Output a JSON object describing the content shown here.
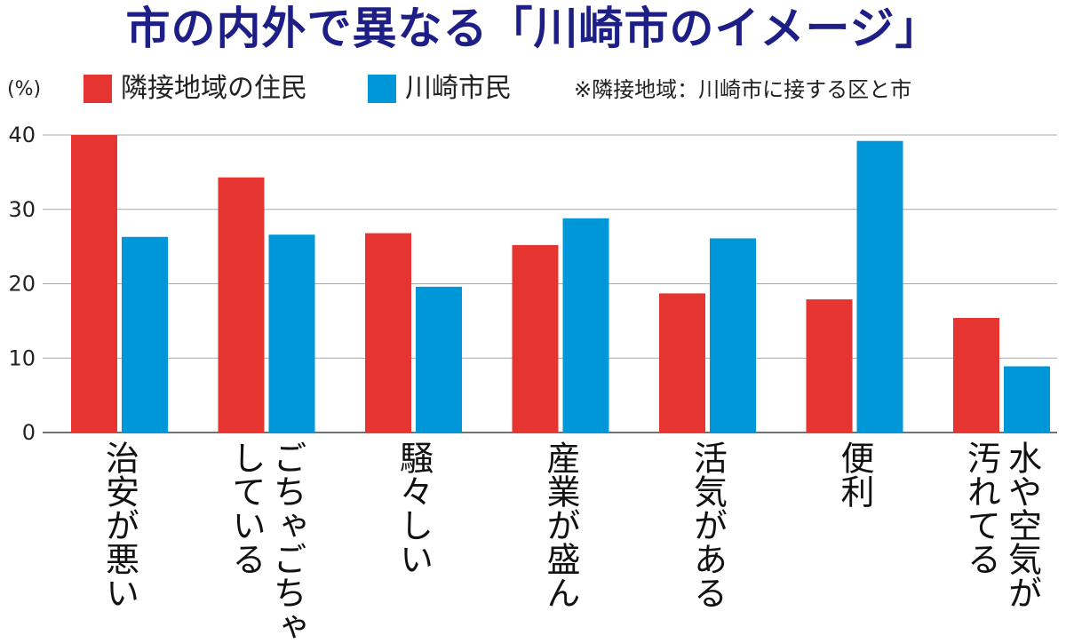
{
  "title": "市の内外で異なる「川崎市のイメージ」",
  "chart_data": {
    "type": "bar",
    "title": "市の内外で異なる「川崎市のイメージ」",
    "ylabel": "(%)",
    "ylim": [
      0,
      40
    ],
    "yticks": [
      0,
      10,
      20,
      30,
      40
    ],
    "categories": [
      {
        "lines": [
          "治安が悪い"
        ]
      },
      {
        "lines": [
          "ごちゃごちゃ",
          "している"
        ]
      },
      {
        "lines": [
          "騒々しい"
        ]
      },
      {
        "lines": [
          "産業が盛ん"
        ]
      },
      {
        "lines": [
          "活気がある"
        ]
      },
      {
        "lines": [
          "便利"
        ]
      },
      {
        "lines": [
          "水や空気が",
          "汚れてる"
        ]
      }
    ],
    "series": [
      {
        "name": "隣接地域の住民",
        "color": "#e63431",
        "values": [
          40,
          34.3,
          26.8,
          25.2,
          18.7,
          17.9,
          15.4
        ]
      },
      {
        "name": "川崎市民",
        "color": "#0097d9",
        "values": [
          26.3,
          26.6,
          19.6,
          28.8,
          26.1,
          39.2,
          8.9
        ]
      }
    ],
    "note": "※隣接地域：川崎市に接する区と市",
    "grid": true,
    "legend_position": "top-left"
  }
}
